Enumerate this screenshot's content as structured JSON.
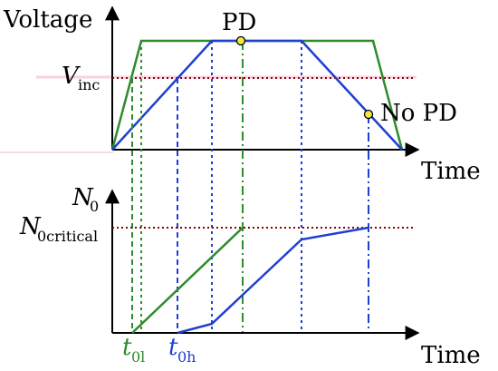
{
  "top_panel": {
    "y_label": "Voltage",
    "x_label": "Time",
    "threshold_label_main": "V",
    "threshold_label_sub": "inc",
    "pd_label": "PD",
    "no_pd_label": "No PD"
  },
  "bottom_panel": {
    "y_label_main": "N",
    "y_label_sub": "0",
    "x_label": "Time",
    "critical_label_main": "N",
    "critical_label_sub": "0critical",
    "t_low_main": "t",
    "t_low_sub": "0l",
    "t_high_main": "t",
    "t_high_sub": "0h"
  },
  "colors": {
    "axis": "#000000",
    "green": "#2e8b2e",
    "blue": "#1f3fd1",
    "threshold": "#8b0000",
    "marker_fill": "#f2e84a",
    "pink_band": "#f2a7c8"
  }
}
